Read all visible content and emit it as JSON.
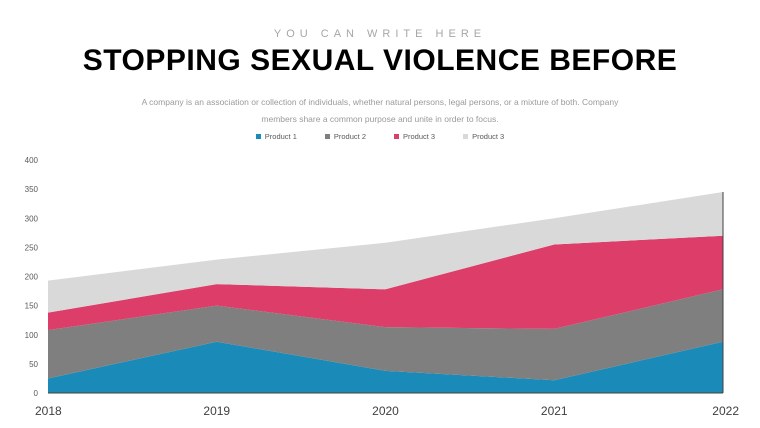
{
  "header": {
    "kicker": "YOU CAN WRITE HERE",
    "title": "STOPPING SEXUAL VIOLENCE BEFORE",
    "description_line1": "A company is an association or collection of individuals, whether natural persons, legal persons, or a mixture of both. Company",
    "description_line2": "members share a common purpose and unite in order to focus."
  },
  "colors": {
    "product1": "#1a8ab8",
    "product2": "#7f7f7f",
    "product3_red": "#dc3e69",
    "product3_light": "#d9d9d9"
  },
  "chart_data": {
    "type": "area",
    "stacked": true,
    "categories": [
      "2018",
      "2019",
      "2020",
      "2021",
      "2022"
    ],
    "series": [
      {
        "name": "Product 1",
        "color": "#1a8ab8",
        "values": [
          25,
          88,
          38,
          22,
          88
        ]
      },
      {
        "name": "Product 2",
        "color": "#7f7f7f",
        "values": [
          83,
          62,
          75,
          88,
          90
        ]
      },
      {
        "name": "Product 3",
        "color": "#dc3e69",
        "values": [
          30,
          37,
          65,
          145,
          92
        ]
      },
      {
        "name": "Product 3",
        "color": "#d9d9d9",
        "values": [
          55,
          42,
          80,
          45,
          75
        ]
      }
    ],
    "ylim": [
      0,
      400
    ],
    "yticks": [
      0,
      50,
      100,
      150,
      200,
      250,
      300,
      350,
      400
    ],
    "grid": false,
    "legend_position": "top-center",
    "title": "",
    "xlabel": "",
    "ylabel": ""
  }
}
